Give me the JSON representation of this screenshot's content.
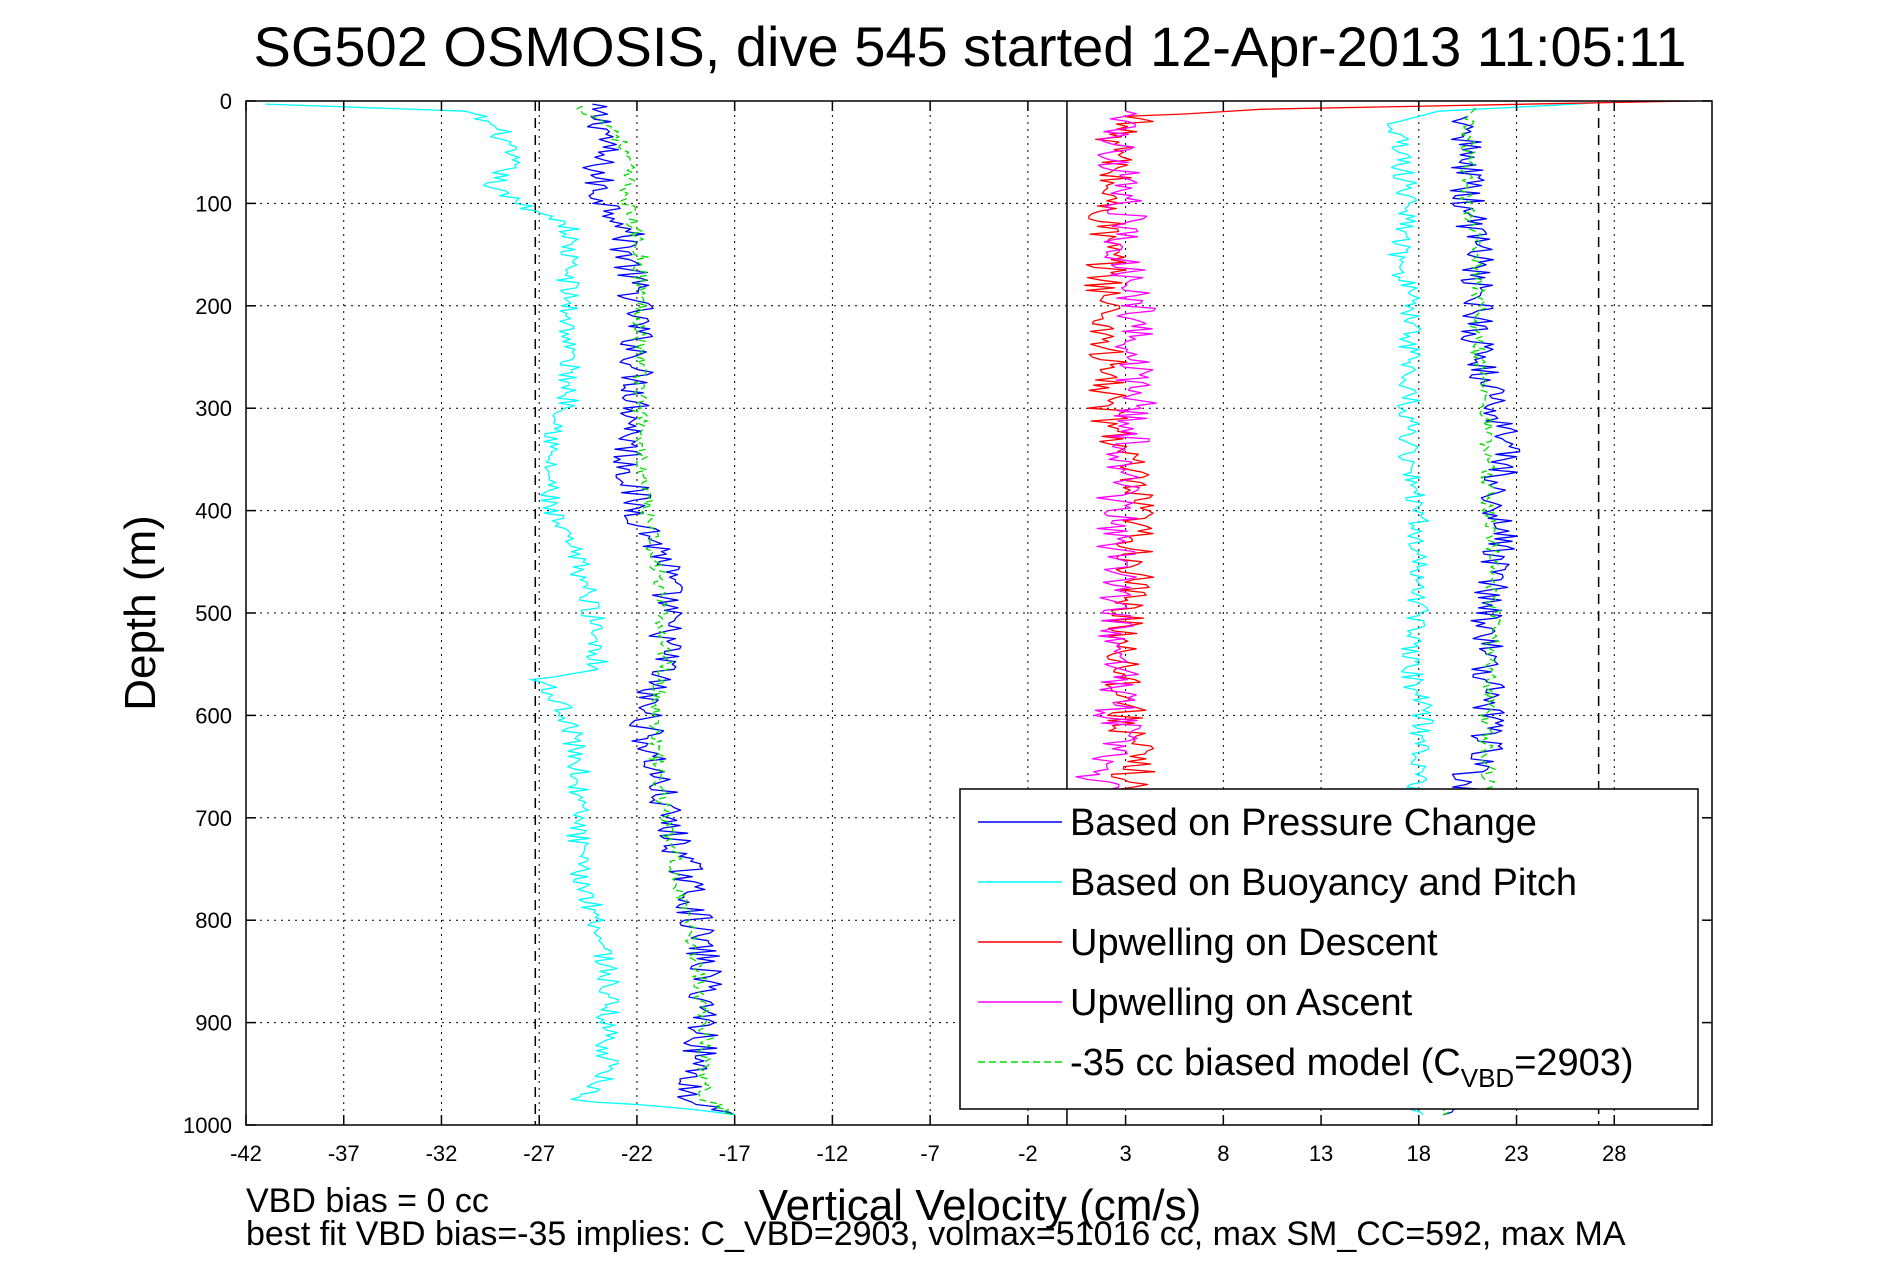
{
  "chart_data": {
    "type": "line",
    "title": "SG502 OSMOSIS, dive 545 started 12-Apr-2013 11:05:11",
    "xlabel": "Vertical Velocity (cm/s)",
    "ylabel": "Depth (m)",
    "xlim": [
      -42,
      33
    ],
    "ylim": [
      1000,
      0
    ],
    "y_reversed": true,
    "xticks": [
      "-42",
      "-37",
      "-32",
      "-27",
      "-22",
      "-17",
      "-12",
      "-7",
      "-2",
      "3",
      "8",
      "13",
      "18",
      "23",
      "28"
    ],
    "yticks": [
      "0",
      "100",
      "200",
      "300",
      "400",
      "500",
      "600",
      "700",
      "800",
      "900",
      "1000"
    ],
    "grid": "dotted",
    "legend_position": "bottom-right",
    "reference_lines": {
      "solid_x": 0,
      "dashed_x": [
        -27.2,
        27.2
      ]
    },
    "series": [
      {
        "name": "Based on Pressure Change",
        "color": "#0000ff",
        "style": "solid",
        "jitter": 0.9,
        "profile": [
          [
            -24.5,
            3
          ],
          [
            -23.5,
            30
          ],
          [
            -24,
            60
          ],
          [
            -24,
            90
          ],
          [
            -22.5,
            120
          ],
          [
            -22.5,
            150
          ],
          [
            -22,
            200
          ],
          [
            -22,
            250
          ],
          [
            -22,
            300
          ],
          [
            -22.5,
            350
          ],
          [
            -22,
            400
          ],
          [
            -20.5,
            450
          ],
          [
            -20.5,
            500
          ],
          [
            -20.5,
            550
          ],
          [
            -21.5,
            580
          ],
          [
            -21.5,
            620
          ],
          [
            -20.5,
            700
          ],
          [
            -19.5,
            750
          ],
          [
            -19,
            800
          ],
          [
            -18.5,
            850
          ],
          [
            -18.5,
            900
          ],
          [
            -19,
            950
          ],
          [
            -19.5,
            975
          ],
          [
            -17,
            990
          ]
        ],
        "profile_ascent": [
          [
            19,
            990
          ],
          [
            21.5,
            950
          ],
          [
            21.5,
            900
          ],
          [
            21.5,
            850
          ],
          [
            21.5,
            800
          ],
          [
            21.5,
            750
          ],
          [
            21.5,
            700
          ],
          [
            21.5,
            680
          ],
          [
            20,
            665
          ],
          [
            21.5,
            640
          ],
          [
            21.5,
            600
          ],
          [
            21.5,
            550
          ],
          [
            21.5,
            500
          ],
          [
            22,
            450
          ],
          [
            22.5,
            420
          ],
          [
            21.5,
            400
          ],
          [
            22.5,
            350
          ],
          [
            22,
            300
          ],
          [
            21,
            250
          ],
          [
            21,
            200
          ],
          [
            21,
            150
          ],
          [
            20.5,
            100
          ],
          [
            20.5,
            50
          ],
          [
            20.5,
            15
          ]
        ]
      },
      {
        "name": "Based on Buoyancy and Pitch",
        "color": "#00ffff",
        "style": "solid",
        "jitter": 0.6,
        "profile": [
          [
            -41,
            3
          ],
          [
            -30.5,
            10
          ],
          [
            -29,
            30
          ],
          [
            -28.5,
            60
          ],
          [
            -29.5,
            85
          ],
          [
            -28,
            100
          ],
          [
            -25.5,
            120
          ],
          [
            -25.5,
            200
          ],
          [
            -25.5,
            300
          ],
          [
            -26.5,
            340
          ],
          [
            -26.5,
            400
          ],
          [
            -25,
            450
          ],
          [
            -24,
            520
          ],
          [
            -24,
            555
          ],
          [
            -27,
            565
          ],
          [
            -25.5,
            600
          ],
          [
            -25,
            650
          ],
          [
            -25,
            700
          ],
          [
            -25,
            750
          ],
          [
            -24,
            800
          ],
          [
            -23.5,
            850
          ],
          [
            -23.5,
            900
          ],
          [
            -23.5,
            950
          ],
          [
            -25,
            975
          ],
          [
            -17,
            990
          ]
        ],
        "profile_ascent": [
          [
            18,
            990
          ],
          [
            18,
            900
          ],
          [
            18,
            800
          ],
          [
            18,
            700
          ],
          [
            18,
            650
          ],
          [
            18.2,
            600
          ],
          [
            17.5,
            550
          ],
          [
            18,
            500
          ],
          [
            18,
            450
          ],
          [
            18,
            400
          ],
          [
            17.5,
            350
          ],
          [
            17.5,
            300
          ],
          [
            17.5,
            250
          ],
          [
            17.5,
            200
          ],
          [
            17,
            150
          ],
          [
            17.5,
            100
          ],
          [
            17,
            50
          ],
          [
            17,
            20
          ],
          [
            19,
            10
          ],
          [
            27,
            2
          ]
        ]
      },
      {
        "name": "Upwelling on Descent",
        "color": "#ff0000",
        "style": "solid",
        "jitter": 1.1,
        "profile": [
          [
            32,
            0
          ],
          [
            10,
            8
          ],
          [
            4,
            15
          ],
          [
            2.5,
            30
          ],
          [
            2.5,
            60
          ],
          [
            2,
            100
          ],
          [
            2,
            150
          ],
          [
            2,
            200
          ],
          [
            2,
            250
          ],
          [
            2,
            300
          ],
          [
            3,
            350
          ],
          [
            3.5,
            400
          ],
          [
            3.5,
            450
          ],
          [
            3,
            500
          ],
          [
            3,
            550
          ],
          [
            3,
            600
          ],
          [
            3.5,
            650
          ],
          [
            3,
            680
          ]
        ]
      },
      {
        "name": "Upwelling on Ascent",
        "color": "#ff00ff",
        "style": "solid",
        "jitter": 1.1,
        "profile": [
          [
            3,
            680
          ],
          [
            1,
            660
          ],
          [
            3,
            620
          ],
          [
            2.5,
            600
          ],
          [
            3,
            550
          ],
          [
            2.5,
            500
          ],
          [
            2.5,
            450
          ],
          [
            2.5,
            400
          ],
          [
            3,
            350
          ],
          [
            3.5,
            300
          ],
          [
            3.5,
            250
          ],
          [
            3.5,
            200
          ],
          [
            3,
            150
          ],
          [
            3,
            100
          ],
          [
            2.5,
            50
          ],
          [
            3,
            10
          ]
        ]
      },
      {
        "name": "-35 cc biased model (C",
        "name_subscript": "VBD",
        "name_suffix": "=2903)",
        "color": "#00dd00",
        "style": "dashed",
        "jitter": 0.4,
        "profile": [
          [
            -25,
            5
          ],
          [
            -23,
            30
          ],
          [
            -22.5,
            60
          ],
          [
            -22.5,
            100
          ],
          [
            -21.8,
            150
          ],
          [
            -21.8,
            200
          ],
          [
            -21.8,
            250
          ],
          [
            -21.8,
            300
          ],
          [
            -21.8,
            350
          ],
          [
            -21.5,
            400
          ],
          [
            -21,
            450
          ],
          [
            -20.8,
            500
          ],
          [
            -20.5,
            550
          ],
          [
            -21,
            580
          ],
          [
            -21,
            650
          ],
          [
            -20.5,
            700
          ],
          [
            -20,
            750
          ],
          [
            -19.5,
            800
          ],
          [
            -18.8,
            850
          ],
          [
            -18.5,
            900
          ],
          [
            -18.5,
            950
          ],
          [
            -18.5,
            975
          ],
          [
            -17,
            990
          ]
        ],
        "profile_ascent": [
          [
            19,
            990
          ],
          [
            21.5,
            950
          ],
          [
            21.5,
            900
          ],
          [
            21.5,
            800
          ],
          [
            21.5,
            700
          ],
          [
            21.5,
            600
          ],
          [
            21.8,
            500
          ],
          [
            21.8,
            450
          ],
          [
            21.5,
            400
          ],
          [
            21.5,
            350
          ],
          [
            21.5,
            300
          ],
          [
            21,
            250
          ],
          [
            21,
            200
          ],
          [
            21,
            150
          ],
          [
            20.5,
            100
          ],
          [
            20.5,
            50
          ],
          [
            20.5,
            15
          ],
          [
            21,
            5
          ]
        ]
      }
    ]
  },
  "footer": {
    "line1": "VBD bias = 0 cc",
    "line2": "best fit VBD bias=-35 implies: C_VBD=2903, volmax=51016 cc, max SM_CC=592, max MA"
  }
}
